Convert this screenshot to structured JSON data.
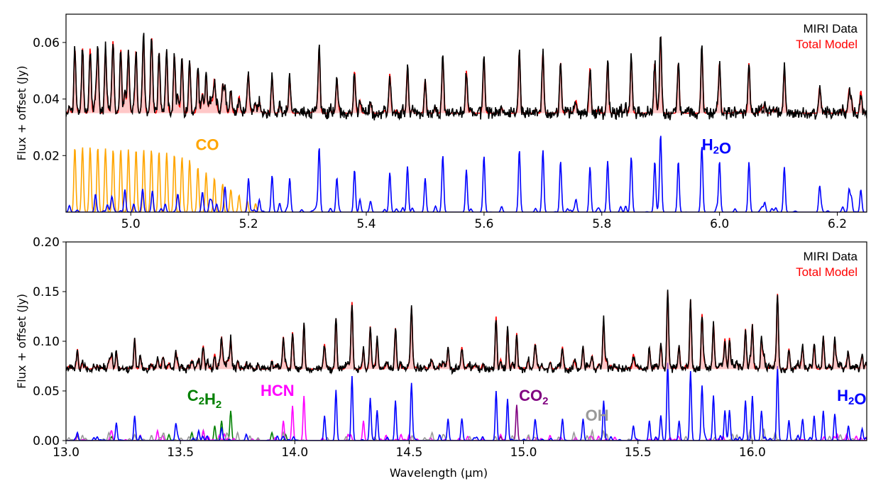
{
  "chart_data": [
    {
      "type": "line",
      "panel": "top",
      "ylabel": "Flux + offset (Jy)",
      "xlim": [
        4.89,
        6.25
      ],
      "ylim": [
        0.0,
        0.07
      ],
      "xticks": [
        5.0,
        5.2,
        5.4,
        5.6,
        5.8,
        6.0,
        6.2
      ],
      "xtick_labels": [
        "5.0",
        "5.2",
        "5.4",
        "5.6",
        "5.8",
        "6.0",
        "6.2"
      ],
      "yticks": [
        0.02,
        0.04,
        0.06
      ],
      "ytick_labels": [
        "0.02",
        "0.04",
        "0.06"
      ],
      "continuum": 0.035,
      "legend": {
        "position": "top-right",
        "entries": [
          {
            "label": "MIRI Data",
            "color": "#000000"
          },
          {
            "label": "Total Model",
            "color": "#ff0000"
          }
        ]
      },
      "series": [
        {
          "name": "MIRI Data",
          "color": "#000000",
          "role": "data"
        },
        {
          "name": "Total Model",
          "color": "#ff0000",
          "role": "model"
        },
        {
          "name": "CO",
          "color": "#ffa500",
          "role": "species",
          "label": "CO",
          "label_at": [
            5.11,
            0.022
          ],
          "peaks": [
            [
              4.905,
              0.023
            ],
            [
              4.918,
              0.023
            ],
            [
              4.931,
              0.023
            ],
            [
              4.944,
              0.023
            ],
            [
              4.957,
              0.0225
            ],
            [
              4.97,
              0.0222
            ],
            [
              4.983,
              0.0222
            ],
            [
              4.996,
              0.0222
            ],
            [
              5.009,
              0.0222
            ],
            [
              5.022,
              0.022
            ],
            [
              5.035,
              0.022
            ],
            [
              5.048,
              0.0215
            ],
            [
              5.061,
              0.021
            ],
            [
              5.074,
              0.0205
            ],
            [
              5.087,
              0.0195
            ],
            [
              5.1,
              0.0185
            ],
            [
              5.114,
              0.016
            ],
            [
              5.128,
              0.014
            ],
            [
              5.142,
              0.012
            ],
            [
              5.156,
              0.01
            ],
            [
              5.17,
              0.008
            ],
            [
              5.184,
              0.006
            ],
            [
              5.198,
              0.004
            ],
            [
              5.212,
              0.003
            ]
          ]
        },
        {
          "name": "H2O",
          "color": "#0000ff",
          "role": "species",
          "label": "H2O",
          "label_at": [
            5.97,
            0.022
          ],
          "peaks": [
            [
              4.94,
              0.006
            ],
            [
              4.99,
              0.008
            ],
            [
              5.02,
              0.008
            ],
            [
              5.08,
              0.006
            ],
            [
              5.16,
              0.009
            ],
            [
              5.2,
              0.012
            ],
            [
              5.24,
              0.013
            ],
            [
              5.27,
              0.012
            ],
            [
              5.32,
              0.023
            ],
            [
              5.35,
              0.012
            ],
            [
              5.38,
              0.015
            ],
            [
              5.44,
              0.014
            ],
            [
              5.47,
              0.016
            ],
            [
              5.5,
              0.012
            ],
            [
              5.53,
              0.019
            ],
            [
              5.57,
              0.015
            ],
            [
              5.6,
              0.018
            ],
            [
              5.66,
              0.022
            ],
            [
              5.7,
              0.022
            ],
            [
              5.73,
              0.018
            ],
            [
              5.78,
              0.016
            ],
            [
              5.81,
              0.018
            ],
            [
              5.85,
              0.019
            ],
            [
              5.89,
              0.018
            ],
            [
              5.9,
              0.027
            ],
            [
              5.93,
              0.018
            ],
            [
              5.97,
              0.022
            ],
            [
              6.0,
              0.018
            ],
            [
              6.05,
              0.017
            ],
            [
              6.11,
              0.016
            ],
            [
              6.17,
              0.009
            ],
            [
              6.22,
              0.008
            ],
            [
              6.24,
              0.008
            ]
          ]
        }
      ]
    },
    {
      "type": "line",
      "panel": "bottom",
      "xlabel": "Wavelength (μm)",
      "ylabel": "Flux + offset (Jy)",
      "xlim": [
        13.0,
        16.5
      ],
      "ylim": [
        0.0,
        0.2
      ],
      "xticks": [
        13.0,
        13.5,
        14.0,
        14.5,
        15.0,
        15.5,
        16.0
      ],
      "xtick_labels": [
        "13.0",
        "13.5",
        "14.0",
        "14.5",
        "15.0",
        "15.5",
        "16.0"
      ],
      "yticks": [
        0.0,
        0.05,
        0.1,
        0.15,
        0.2
      ],
      "ytick_labels": [
        "0.00",
        "0.05",
        "0.10",
        "0.15",
        "0.20"
      ],
      "continuum": 0.072,
      "legend": {
        "position": "top-right",
        "entries": [
          {
            "label": "MIRI Data",
            "color": "#000000"
          },
          {
            "label": "Total Model",
            "color": "#ff0000"
          }
        ]
      },
      "series": [
        {
          "name": "MIRI Data",
          "color": "#000000",
          "role": "data"
        },
        {
          "name": "Total Model",
          "color": "#ff0000",
          "role": "model"
        },
        {
          "name": "C2H2",
          "color": "#008000",
          "role": "species",
          "label": "C2H2",
          "label_at": [
            13.53,
            0.04
          ],
          "peaks": [
            [
              13.05,
              0.005
            ],
            [
              13.2,
              0.004
            ],
            [
              13.45,
              0.006
            ],
            [
              13.55,
              0.008
            ],
            [
              13.6,
              0.01
            ],
            [
              13.65,
              0.015
            ],
            [
              13.68,
              0.02
            ],
            [
              13.72,
              0.03
            ],
            [
              13.9,
              0.008
            ],
            [
              13.96,
              0.006
            ]
          ]
        },
        {
          "name": "HCN",
          "color": "#ff00ff",
          "role": "species",
          "label": "HCN",
          "label_at": [
            13.85,
            0.045
          ],
          "peaks": [
            [
              13.05,
              0.007
            ],
            [
              13.2,
              0.008
            ],
            [
              13.4,
              0.01
            ],
            [
              13.6,
              0.01
            ],
            [
              13.95,
              0.02
            ],
            [
              13.99,
              0.035
            ],
            [
              14.04,
              0.045
            ],
            [
              14.3,
              0.02
            ],
            [
              14.5,
              0.006
            ],
            [
              14.9,
              0.006
            ]
          ]
        },
        {
          "name": "CO2",
          "color": "#800080",
          "role": "species",
          "label": "CO2",
          "label_at": [
            14.98,
            0.04
          ],
          "peaks": [
            [
              14.97,
              0.036
            ],
            [
              14.9,
              0.004
            ]
          ]
        },
        {
          "name": "OH",
          "color": "#999999",
          "role": "species",
          "label": "OH",
          "label_at": [
            15.27,
            0.02
          ],
          "peaks": [
            [
              13.3,
              0.006
            ],
            [
              13.75,
              0.008
            ],
            [
              13.95,
              0.008
            ],
            [
              14.6,
              0.008
            ],
            [
              15.22,
              0.008
            ],
            [
              15.3,
              0.01
            ],
            [
              15.99,
              0.01
            ],
            [
              16.05,
              0.012
            ],
            [
              16.1,
              0.008
            ]
          ]
        },
        {
          "name": "H2O",
          "color": "#0000ff",
          "role": "species",
          "label": "H2O",
          "label_at": [
            16.37,
            0.04
          ],
          "peaks": [
            [
              13.05,
              0.008
            ],
            [
              13.22,
              0.018
            ],
            [
              13.3,
              0.025
            ],
            [
              13.48,
              0.017
            ],
            [
              13.58,
              0.01
            ],
            [
              13.68,
              0.012
            ],
            [
              14.13,
              0.025
            ],
            [
              14.18,
              0.051
            ],
            [
              14.25,
              0.065
            ],
            [
              14.33,
              0.043
            ],
            [
              14.36,
              0.03
            ],
            [
              14.44,
              0.04
            ],
            [
              14.51,
              0.058
            ],
            [
              14.67,
              0.022
            ],
            [
              14.73,
              0.02
            ],
            [
              14.88,
              0.05
            ],
            [
              14.93,
              0.042
            ],
            [
              15.05,
              0.02
            ],
            [
              15.17,
              0.022
            ],
            [
              15.26,
              0.022
            ],
            [
              15.35,
              0.04
            ],
            [
              15.48,
              0.015
            ],
            [
              15.55,
              0.02
            ],
            [
              15.6,
              0.025
            ],
            [
              15.63,
              0.075
            ],
            [
              15.68,
              0.02
            ],
            [
              15.73,
              0.07
            ],
            [
              15.78,
              0.055
            ],
            [
              15.83,
              0.045
            ],
            [
              15.88,
              0.03
            ],
            [
              15.9,
              0.03
            ],
            [
              15.97,
              0.04
            ],
            [
              16.0,
              0.045
            ],
            [
              16.04,
              0.03
            ],
            [
              16.11,
              0.075
            ],
            [
              16.16,
              0.02
            ],
            [
              16.22,
              0.02
            ],
            [
              16.27,
              0.025
            ],
            [
              16.31,
              0.03
            ],
            [
              16.36,
              0.025
            ],
            [
              16.42,
              0.015
            ],
            [
              16.48,
              0.012
            ]
          ]
        }
      ]
    }
  ]
}
